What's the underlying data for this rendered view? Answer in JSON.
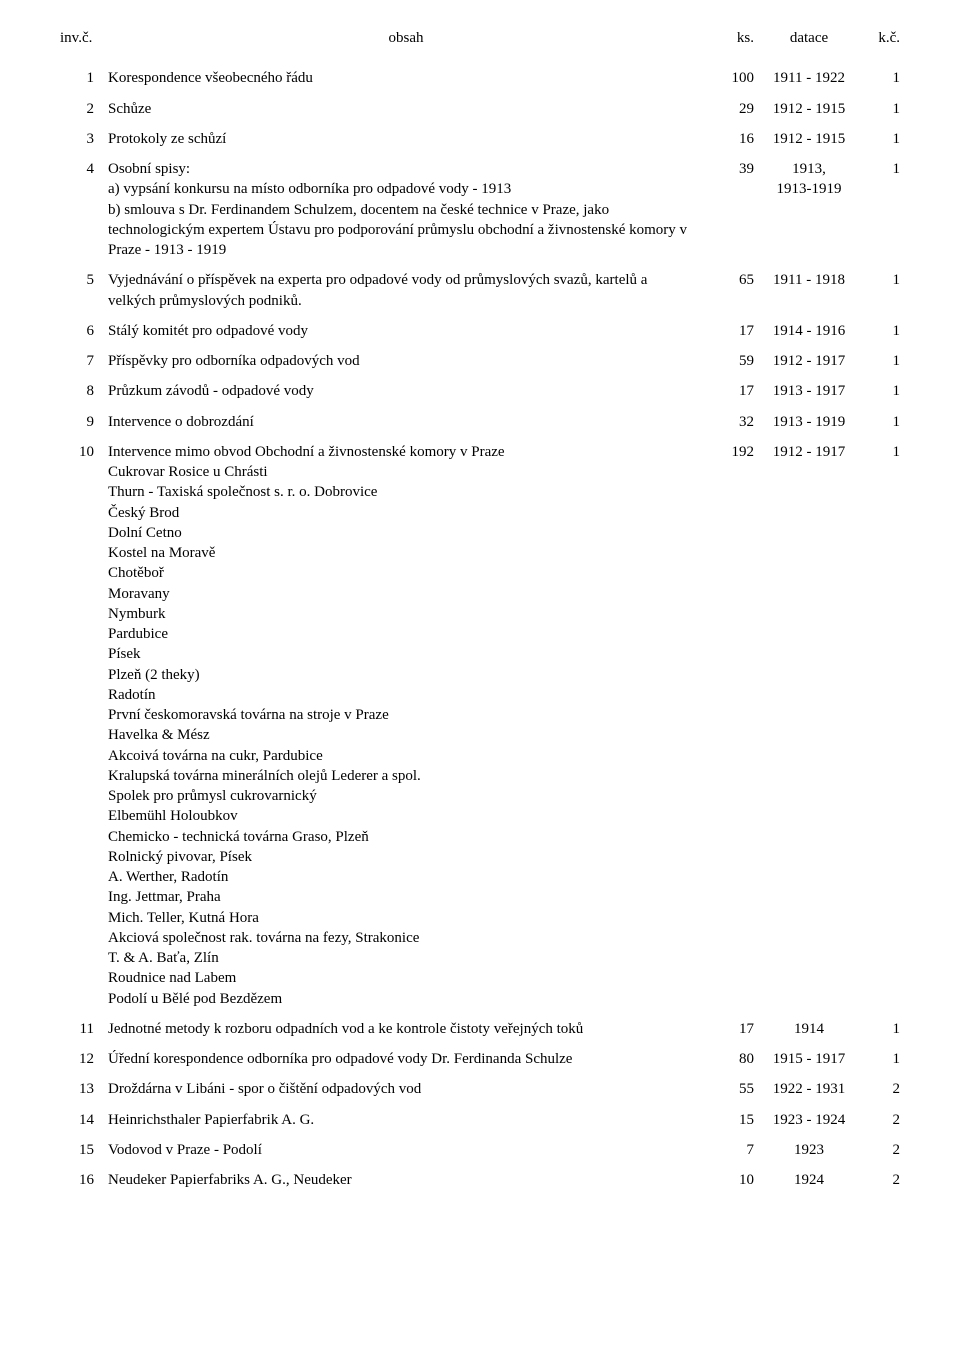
{
  "header": {
    "inv": "inv.č.",
    "obsah": "obsah",
    "ks": "ks.",
    "datace": "datace",
    "kc": "k.č."
  },
  "rows": [
    {
      "inv": "1",
      "obsah": "Korespondence všeobecného řádu",
      "ks": "100",
      "datace": "1911 - 1922",
      "kc": "1"
    },
    {
      "inv": "2",
      "obsah": "Schůze",
      "ks": "29",
      "datace": "1912 - 1915",
      "kc": "1"
    },
    {
      "inv": "3",
      "obsah": "Protokoly ze schůzí",
      "ks": "16",
      "datace": "1912 - 1915",
      "kc": "1"
    },
    {
      "inv": "4",
      "obsah": "Osobní spisy:\na) vypsání konkursu na místo odborníka pro odpadové vody - 1913\nb) smlouva s Dr. Ferdinandem Schulzem, docentem na české technice v Praze, jako technologickým expertem Ústavu pro podporování průmyslu obchodní a živnostenské komory v Praze - 1913 - 1919",
      "ks": "39",
      "datace": "1913,\n1913-1919",
      "kc": "1"
    },
    {
      "inv": "5",
      "obsah": "Vyjednávání o příspěvek na experta pro odpadové vody od průmyslových svazů, kartelů a velkých průmyslových podniků.",
      "ks": "65",
      "datace": "1911 - 1918",
      "kc": "1"
    },
    {
      "inv": "6",
      "obsah": "Stálý komitét pro odpadové vody",
      "ks": "17",
      "datace": "1914 - 1916",
      "kc": "1"
    },
    {
      "inv": "7",
      "obsah": "Příspěvky pro odborníka odpadových vod",
      "ks": "59",
      "datace": "1912 - 1917",
      "kc": "1"
    },
    {
      "inv": "8",
      "obsah": "Průzkum závodů - odpadové vody",
      "ks": "17",
      "datace": "1913 - 1917",
      "kc": "1"
    },
    {
      "inv": "9",
      "obsah": "Intervence o dobrozdání",
      "ks": "32",
      "datace": "1913 - 1919",
      "kc": "1"
    },
    {
      "inv": "10",
      "obsah": "Intervence mimo obvod Obchodní a živnostenské komory v Praze\nCukrovar Rosice u Chrásti\nThurn - Taxiská společnost s. r. o. Dobrovice\nČeský Brod\nDolní Cetno\nKostel na Moravě\nChotěboř\nMoravany\nNymburk\nPardubice\nPísek\nPlzeň (2 theky)\nRadotín\nPrvní českomoravská továrna na stroje v Praze\nHavelka & Mész\nAkcoivá továrna na cukr, Pardubice\nKralupská továrna minerálních olejů Lederer a spol.\nSpolek pro průmysl cukrovarnický\nElbemühl Holoubkov\nChemicko - technická továrna Graso, Plzeň\nRolnický pivovar, Písek\nA. Werther, Radotín\nIng. Jettmar, Praha\nMich. Teller, Kutná Hora\nAkciová společnost rak. továrna na fezy, Strakonice\nT. & A. Baťa, Zlín\nRoudnice nad Labem\nPodolí u Bělé pod Bezdězem",
      "ks": "192",
      "datace": "1912 - 1917",
      "kc": "1"
    },
    {
      "inv": "11",
      "obsah": "Jednotné metody k rozboru odpadních vod a ke kontrole čistoty veřejných toků",
      "ks": "17",
      "datace": "1914",
      "kc": "1"
    },
    {
      "inv": "12",
      "obsah": "Úřední korespondence odborníka pro odpadové vody Dr. Ferdinanda Schulze",
      "ks": "80",
      "datace": "1915 - 1917",
      "kc": "1"
    },
    {
      "inv": "13",
      "obsah": "Droždárna v Libáni - spor o čištění odpadových vod",
      "ks": "55",
      "datace": "1922 - 1931",
      "kc": "2"
    },
    {
      "inv": "14",
      "obsah": "Heinrichsthaler Papierfabrik A. G.",
      "ks": "15",
      "datace": "1923 - 1924",
      "kc": "2"
    },
    {
      "inv": "15",
      "obsah": "Vodovod v Praze - Podolí",
      "ks": "7",
      "datace": "1923",
      "kc": "2"
    },
    {
      "inv": "16",
      "obsah": "Neudeker Papierfabriks A. G., Neudeker",
      "ks": "10",
      "datace": "1924",
      "kc": "2"
    }
  ]
}
